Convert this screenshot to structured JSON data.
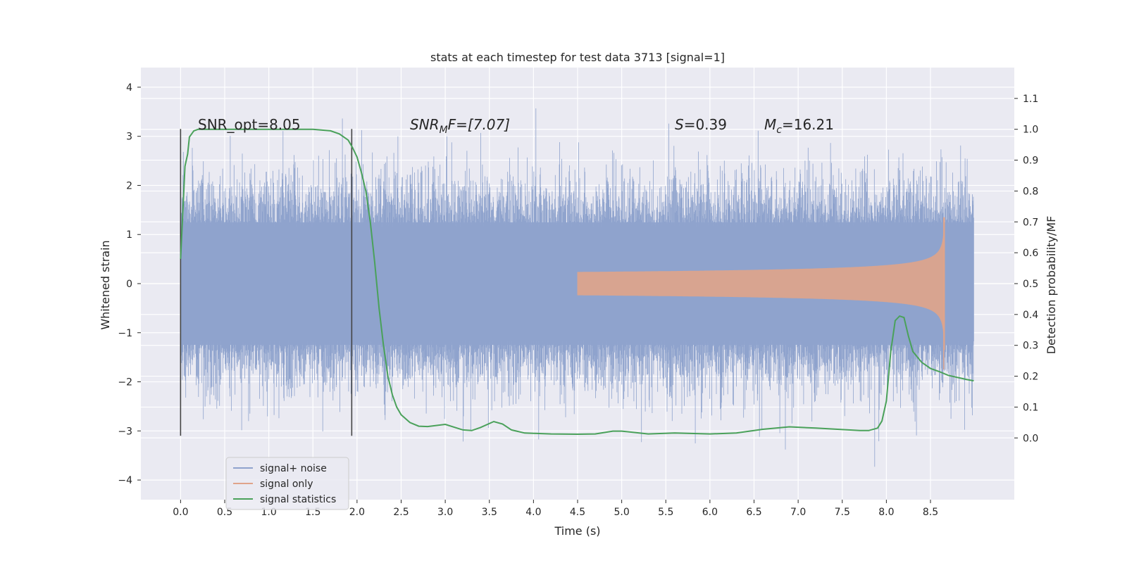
{
  "chart_data": {
    "type": "line",
    "title": "stats at each timestep for test data 3713 [signal=1]",
    "xlabel": "Time (s)",
    "ylabel": "Whitened strain",
    "ylabel_right": "Detection probability/MF",
    "xlim": [
      -0.45,
      9.45
    ],
    "ylim": [
      -4.4,
      4.4
    ],
    "ylim_right": [
      -0.2,
      1.2
    ],
    "x_ticks": [
      "0.0",
      "0.5",
      "1.0",
      "1.5",
      "2.0",
      "2.5",
      "3.0",
      "3.5",
      "4.0",
      "4.5",
      "5.0",
      "5.5",
      "6.0",
      "6.5",
      "7.0",
      "7.5",
      "8.0",
      "8.5"
    ],
    "y_ticks": [
      "4",
      "3",
      "2",
      "1",
      "0",
      "−1",
      "−2",
      "−3",
      "−4"
    ],
    "y_ticks_right": [
      "1.1",
      "1.0",
      "0.9",
      "0.8",
      "0.7",
      "0.6",
      "0.5",
      "0.4",
      "0.3",
      "0.2",
      "0.1",
      "0.0"
    ],
    "annotations": {
      "snr_opt": "SNR_opt=8.05",
      "snr_mf_a": "SNR",
      "snr_mf_sub": "M",
      "snr_mf_b": "F=[7.07]",
      "s_a": "S",
      "s_b": "=0.39",
      "mc_a": "M",
      "mc_sub": "c",
      "mc_b": "=16.21"
    },
    "vlines": [
      0.0,
      1.94
    ],
    "series": [
      {
        "name": "signal+ noise",
        "color": "#8fa3cd",
        "kind": "noise",
        "t_end": 8.99,
        "rms_band": 1.25
      },
      {
        "name": "signal only",
        "color": "#e0a48a",
        "kind": "chirp",
        "t_start": 4.5,
        "t_end": 8.66,
        "peak": 1.35
      },
      {
        "name": "signal statistics",
        "color": "#4aa15a",
        "x": [
          0.0,
          0.05,
          0.08,
          0.1,
          0.15,
          0.2,
          0.5,
          1.0,
          1.5,
          1.7,
          1.8,
          1.9,
          1.95,
          2.0,
          2.05,
          2.1,
          2.15,
          2.2,
          2.25,
          2.3,
          2.35,
          2.4,
          2.45,
          2.5,
          2.6,
          2.7,
          2.8,
          3.0,
          3.2,
          3.3,
          3.4,
          3.55,
          3.65,
          3.75,
          3.9,
          4.0,
          4.2,
          4.5,
          4.7,
          4.9,
          5.0,
          5.3,
          5.6,
          6.0,
          6.3,
          6.6,
          6.9,
          7.2,
          7.5,
          7.7,
          7.8,
          7.9,
          7.95,
          8.0,
          8.05,
          8.1,
          8.15,
          8.2,
          8.25,
          8.3,
          8.4,
          8.5,
          8.6,
          8.7,
          8.9,
          8.99
        ],
        "y": [
          0.58,
          0.88,
          0.92,
          0.975,
          0.995,
          1.0,
          1.0,
          1.0,
          1.0,
          0.995,
          0.985,
          0.965,
          0.94,
          0.91,
          0.86,
          0.8,
          0.7,
          0.57,
          0.42,
          0.3,
          0.2,
          0.14,
          0.1,
          0.075,
          0.05,
          0.038,
          0.037,
          0.044,
          0.026,
          0.024,
          0.034,
          0.053,
          0.045,
          0.026,
          0.016,
          0.015,
          0.013,
          0.012,
          0.013,
          0.022,
          0.022,
          0.013,
          0.016,
          0.013,
          0.016,
          0.028,
          0.036,
          0.032,
          0.027,
          0.024,
          0.024,
          0.032,
          0.055,
          0.12,
          0.28,
          0.38,
          0.395,
          0.39,
          0.33,
          0.28,
          0.245,
          0.225,
          0.215,
          0.203,
          0.19,
          0.185
        ]
      }
    ],
    "legend": {
      "location": "lower-left",
      "labels": [
        "signal+ noise",
        "signal only",
        "signal statistics"
      ]
    },
    "grid": true,
    "background": "#eaeaf2"
  }
}
